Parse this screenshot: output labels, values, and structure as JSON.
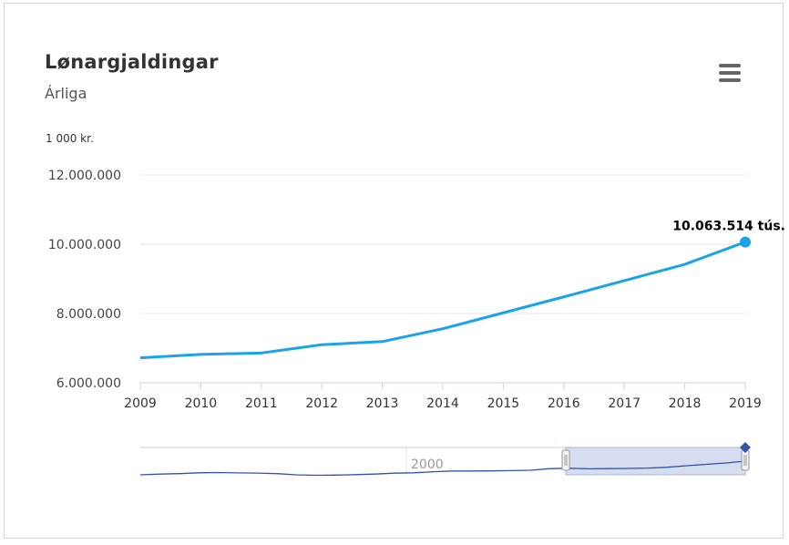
{
  "header": {
    "title": "Lønargjaldingar",
    "subtitle": "Árliga",
    "menu_icon": "hamburger-menu-icon"
  },
  "colors": {
    "line": "#1aa3e8",
    "navigator_line": "#3452a8",
    "navigator_mask": "#d6ddf0",
    "grid": "#e6e6e6"
  },
  "chart_data": {
    "type": "line",
    "unit_label": "1 000 kr.",
    "x": [
      2009,
      2010,
      2011,
      2012,
      2013,
      2014,
      2015,
      2016,
      2017,
      2018,
      2019
    ],
    "series": [
      {
        "values": [
          6720000,
          6820000,
          6860000,
          7100000,
          7190000,
          7560000,
          8020000,
          8480000,
          8950000,
          9420000,
          10063514
        ]
      }
    ],
    "y_ticks": [
      "6.000.000",
      "8.000.000",
      "10.000.000",
      "12.000.000"
    ],
    "ylim": [
      6000000,
      12000000
    ],
    "x_ticks": [
      "2009",
      "2010",
      "2011",
      "2012",
      "2013",
      "2014",
      "2015",
      "2016",
      "2017",
      "2018",
      "2019"
    ],
    "data_label": "10.063.514 tús.",
    "grid": true,
    "navigator": {
      "label": "2000",
      "values": [
        5200000,
        5280000,
        5330000,
        5420000,
        5450000,
        5410000,
        5390000,
        5330000,
        5200000,
        5150000,
        5170000,
        5220000,
        5280000,
        5380000,
        5420000,
        5540000,
        5620000,
        5620000,
        5630000,
        5660000,
        5700000,
        5880000,
        5920000,
        5860000,
        5880000,
        5900000,
        5940000,
        6030000,
        6200000,
        6350000,
        6500000,
        6700000
      ],
      "selected_from": 2009,
      "selected_to": 2019
    }
  }
}
